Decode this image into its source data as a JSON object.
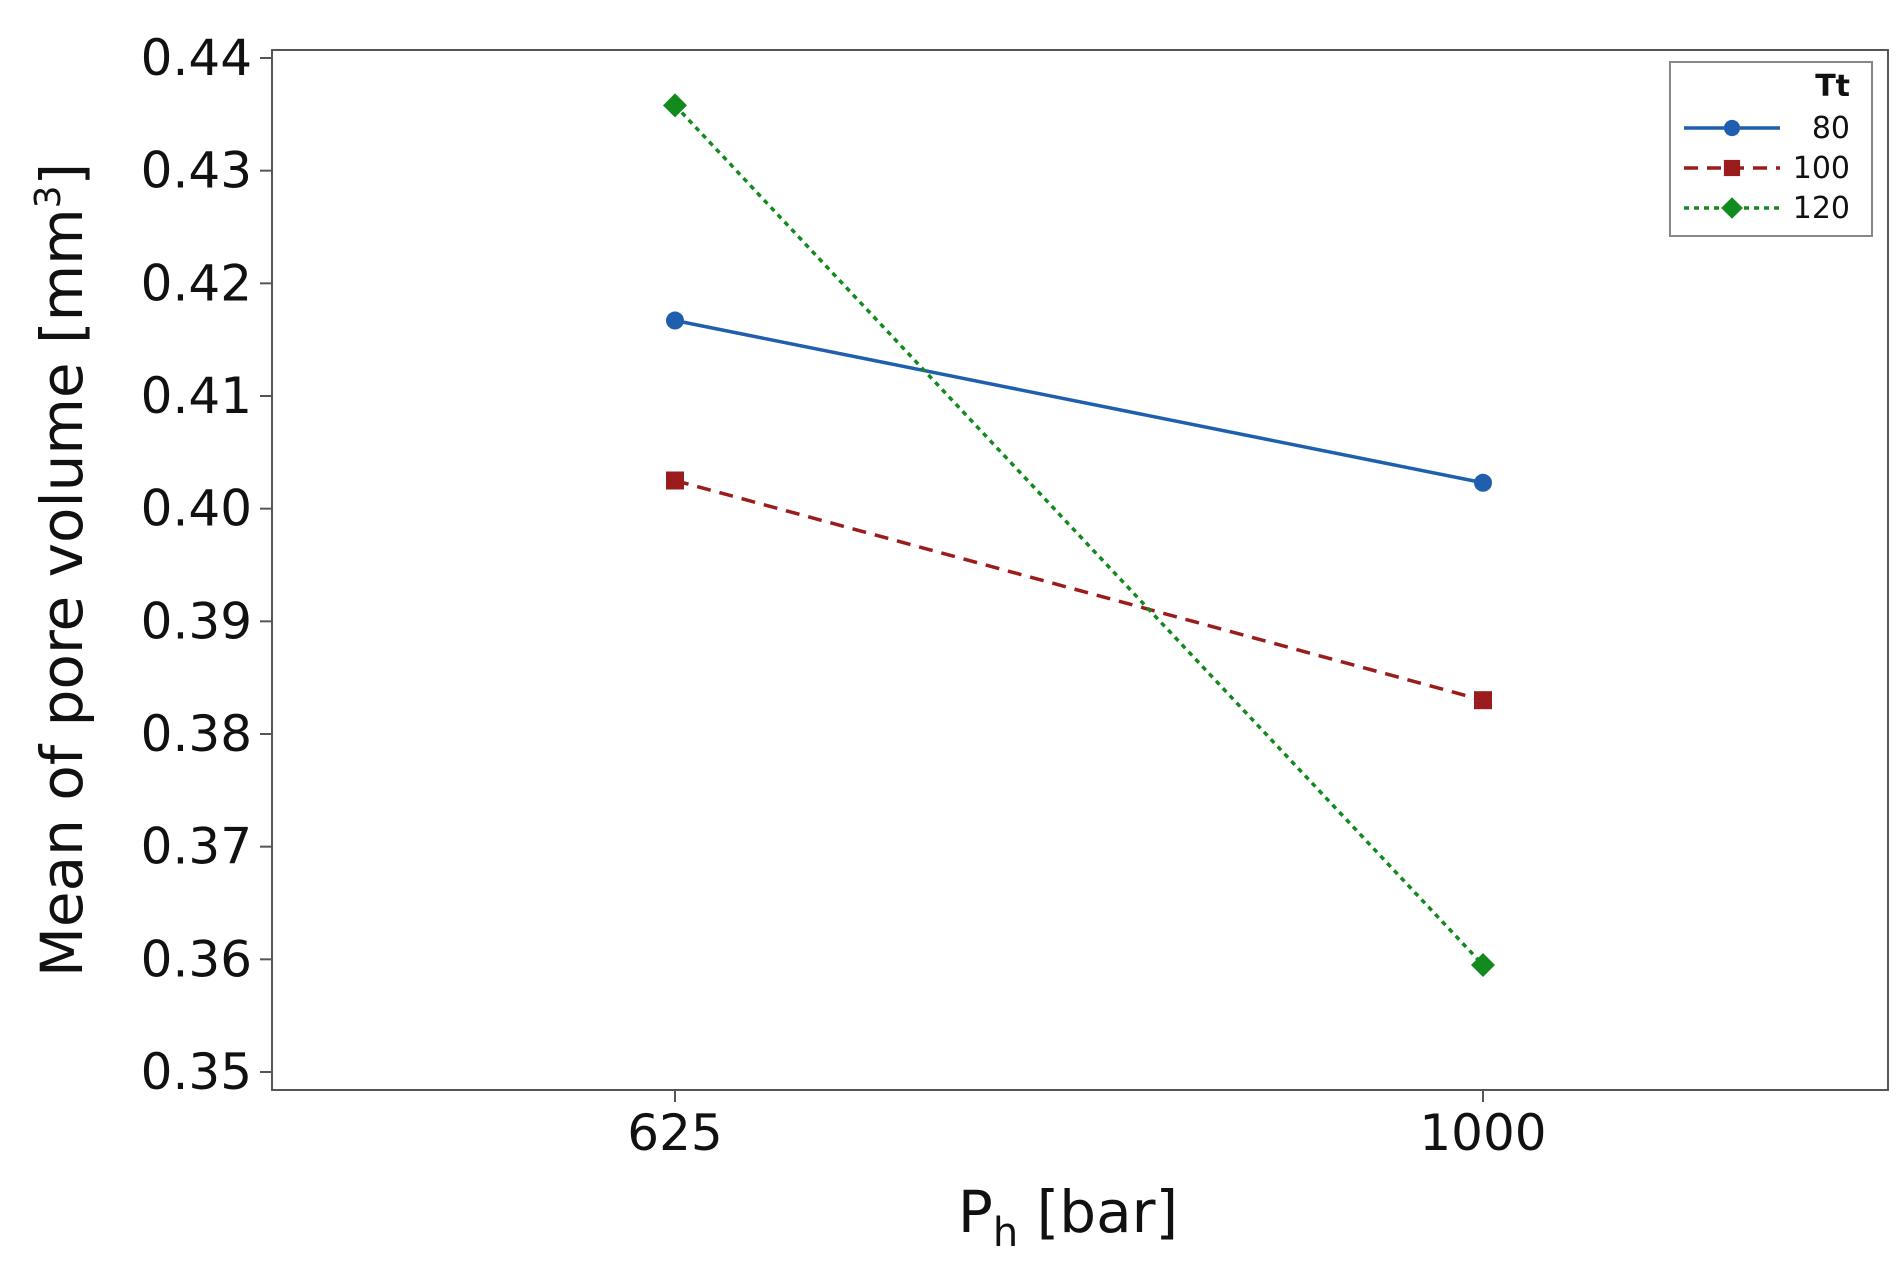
{
  "chart_data": {
    "type": "line",
    "title": "",
    "xlabel": {
      "main": "P",
      "sub": "h",
      "unit": " [bar]"
    },
    "ylabel": {
      "main": "Mean of pore volume [mm",
      "sup": "3",
      "close": "]"
    },
    "categories": [
      "625",
      "1000"
    ],
    "ylim": [
      0.35,
      0.44
    ],
    "yticks": [
      0.35,
      0.36,
      0.37,
      0.38,
      0.39,
      0.4,
      0.41,
      0.42,
      0.43,
      0.44
    ],
    "ytick_labels": [
      "0.35",
      "0.36",
      "0.37",
      "0.38",
      "0.39",
      "0.40",
      "0.41",
      "0.42",
      "0.43",
      "0.44"
    ],
    "grid": false,
    "legend": {
      "title": "Tt",
      "position": "top-right"
    },
    "series": [
      {
        "name": "80",
        "values": [
          0.4167,
          0.4023
        ],
        "color": "#1f5fae",
        "dash": "solid",
        "marker": "circle"
      },
      {
        "name": "100",
        "values": [
          0.4025,
          0.383
        ],
        "color": "#9b1c1c",
        "dash": "dashed",
        "marker": "square"
      },
      {
        "name": "120",
        "values": [
          0.4358,
          0.3595
        ],
        "color": "#128a1e",
        "dash": "dotted",
        "marker": "diamond"
      }
    ]
  }
}
